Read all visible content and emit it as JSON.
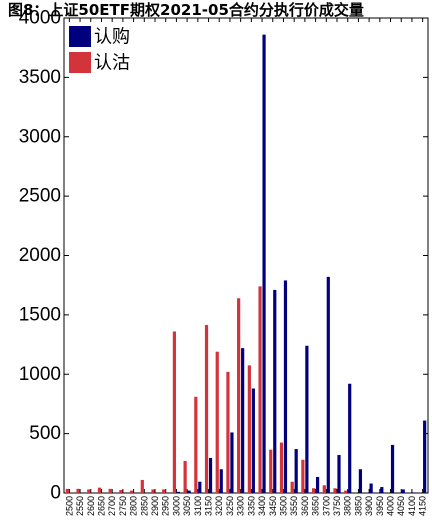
{
  "chart_data": {
    "type": "bar",
    "title": "图8：上证50ETF期权2021-05合约分执行价成交量",
    "xlabel": "",
    "ylabel": "",
    "ylim": [
      0,
      4000
    ],
    "yticks": [
      0,
      500,
      1000,
      1500,
      2000,
      2500,
      3000,
      3500,
      4000
    ],
    "grid": false,
    "legend_position": "top-left",
    "categories": [
      "2500",
      "2550",
      "2600",
      "2650",
      "2700",
      "2750",
      "2800",
      "2850",
      "2900",
      "2950",
      "3000",
      "3050",
      "3100",
      "3150",
      "3200",
      "3250",
      "3300",
      "3350",
      "3400",
      "3450",
      "3500",
      "3550",
      "3600",
      "3650",
      "3700",
      "3750",
      "3800",
      "3850",
      "3900",
      "3950",
      "4000",
      "4050",
      "4100",
      "4150"
    ],
    "series": [
      {
        "name": "认购",
        "color": "#00007f",
        "values": [
          0,
          0,
          0,
          0,
          0,
          0,
          0,
          0,
          0,
          0,
          10,
          20,
          95,
          295,
          200,
          510,
          1220,
          880,
          3860,
          1710,
          1790,
          370,
          1240,
          135,
          1820,
          320,
          920,
          200,
          80,
          50,
          405,
          30,
          5,
          610
        ]
      },
      {
        "name": "认沽",
        "color": "#d3333a",
        "values": [
          35,
          35,
          30,
          45,
          35,
          25,
          20,
          110,
          30,
          30,
          1360,
          270,
          810,
          1415,
          1190,
          1020,
          1640,
          1075,
          1740,
          365,
          425,
          95,
          280,
          40,
          65,
          40,
          20,
          0,
          0,
          0,
          0,
          0,
          0,
          0
        ]
      }
    ]
  }
}
